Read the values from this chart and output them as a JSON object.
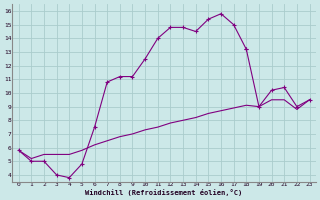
{
  "xlabel": "Windchill (Refroidissement éolien,°C)",
  "bg_color": "#cce8e8",
  "grid_color": "#aacccc",
  "line_color": "#800080",
  "xlim": [
    -0.5,
    23.5
  ],
  "ylim": [
    3.5,
    16.5
  ],
  "xticks": [
    0,
    1,
    2,
    3,
    4,
    5,
    6,
    7,
    8,
    9,
    10,
    11,
    12,
    13,
    14,
    15,
    16,
    17,
    18,
    19,
    20,
    21,
    22,
    23
  ],
  "yticks": [
    4,
    5,
    6,
    7,
    8,
    9,
    10,
    11,
    12,
    13,
    14,
    15,
    16
  ],
  "curve_arch_x": [
    0,
    1,
    2,
    3,
    4,
    5,
    6,
    7,
    8,
    9,
    10,
    11,
    12,
    13,
    14,
    15,
    16,
    17,
    18
  ],
  "curve_arch_y": [
    5.8,
    5.0,
    5.0,
    4.0,
    3.8,
    4.8,
    7.5,
    10.8,
    11.2,
    11.2,
    12.5,
    14.0,
    14.8,
    14.8,
    14.5,
    15.4,
    15.8,
    15.0,
    13.2
  ],
  "curve_right_x": [
    18,
    19,
    20,
    21,
    22,
    23
  ],
  "curve_right_y": [
    13.2,
    9.0,
    10.2,
    10.4,
    9.0,
    9.5
  ],
  "curve_diag_x": [
    0,
    1,
    2,
    3,
    4,
    5,
    6,
    7,
    8,
    9,
    10,
    11,
    12,
    13,
    14,
    15,
    16,
    17,
    18,
    19,
    20,
    21,
    22,
    23
  ],
  "curve_diag_y": [
    5.8,
    5.2,
    5.5,
    5.5,
    5.5,
    5.8,
    6.2,
    6.5,
    6.8,
    7.0,
    7.3,
    7.5,
    7.8,
    8.0,
    8.2,
    8.5,
    8.7,
    8.9,
    9.1,
    9.0,
    9.5,
    9.5,
    8.8,
    9.5
  ]
}
